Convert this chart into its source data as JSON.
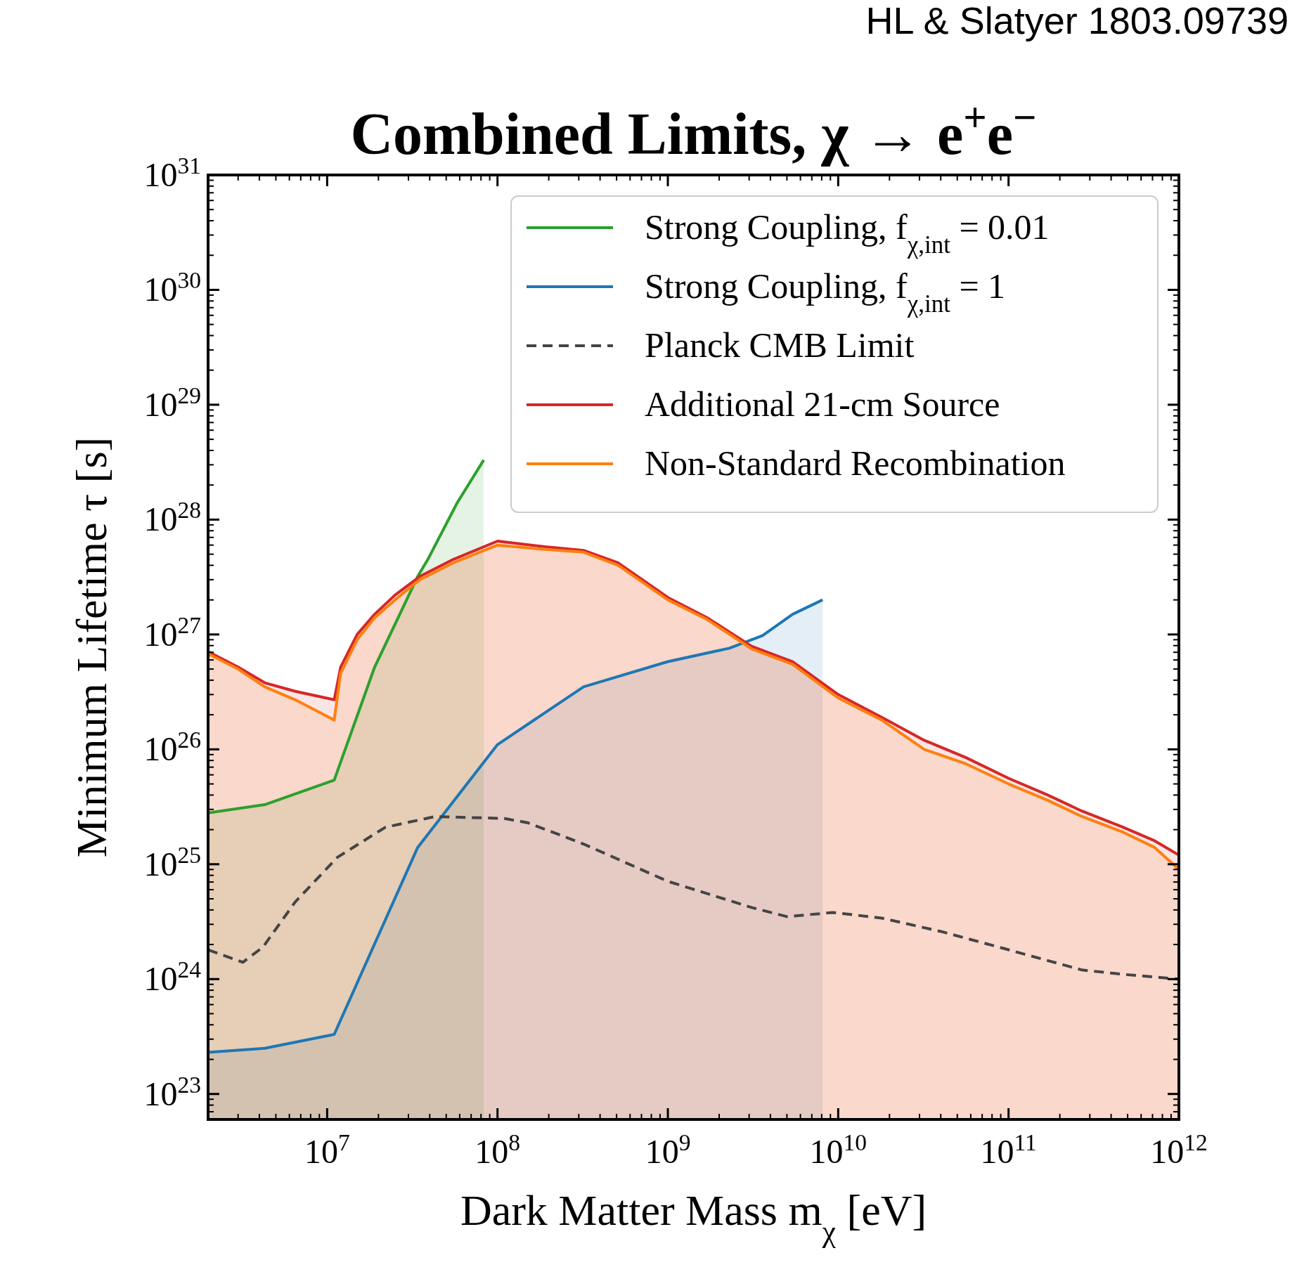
{
  "chart_data": {
    "type": "line",
    "title": "Combined Limits, χ → e$^{+}$e$^{−}$",
    "xlabel": "Dark Matter Mass m$_{χ}$ [eV]",
    "ylabel": "Minimum Lifetime τ [s]",
    "annotations": [
      "HL & Slatyer 1803.09739"
    ],
    "log": "xy",
    "legend": "top right",
    "xlim": [
      2000000.0,
      1000000000000.0
    ],
    "ylim": [
      6e+22,
      1e+31
    ],
    "xticks": [
      {
        "value": 10000000.0,
        "label": "10$^{7}$"
      },
      {
        "value": 100000000.0,
        "label": "10$^{8}$"
      },
      {
        "value": 1000000000.0,
        "label": "10$^{9}$"
      },
      {
        "value": 10000000000.0,
        "label": "10$^{10}$"
      },
      {
        "value": 100000000000.0,
        "label": "10$^{11}$"
      },
      {
        "value": 1000000000000.0,
        "label": "10$^{12}$"
      }
    ],
    "yticks": [
      {
        "value": 1e+23,
        "label": "10$^{23}$"
      },
      {
        "value": 1e+24,
        "label": "10$^{24}$"
      },
      {
        "value": 1e+25,
        "label": "10$^{25}$"
      },
      {
        "value": 1e+26,
        "label": "10$^{26}$"
      },
      {
        "value": 1e+27,
        "label": "10$^{27}$"
      },
      {
        "value": 1e+28,
        "label": "10$^{28}$"
      },
      {
        "value": 1e+29,
        "label": "10$^{29}$"
      },
      {
        "value": 1e+30,
        "label": "10$^{30}$"
      },
      {
        "value": 1e+31,
        "label": "10$^{31}$"
      }
    ],
    "series": [
      {
        "name": "Strong Coupling, f$_{χ,int}$ = 0.01",
        "type": "area",
        "color": "#2ca02c",
        "x": [
          2000000.0,
          4300000.0,
          11000000.0,
          19000000.0,
          34000000.0,
          39000000.0,
          58000000.0,
          83000000.0
        ],
        "values": [
          2.8e+25,
          3.3e+25,
          5.4e+25,
          5.2e+26,
          3.2e+27,
          4.5e+27,
          1.4e+28,
          3.3e+28
        ]
      },
      {
        "name": "Strong Coupling, f$_{χ,int}$ = 1",
        "type": "area",
        "color": "#1f77b4",
        "x": [
          2000000.0,
          4300000.0,
          11000000.0,
          34000000.0,
          100000000.0,
          320000000.0,
          1000000000.0,
          2300000000.0,
          3600000000.0,
          5400000000.0,
          8100000000.0
        ],
        "values": [
          2.3e+23,
          2.5e+23,
          3.3e+23,
          1.4e+25,
          1.1e+26,
          3.5e+26,
          5.8e+26,
          7.6e+26,
          9.8e+26,
          1.5e+27,
          2e+27
        ]
      },
      {
        "name": "Planck CMB Limit",
        "line_style": "dashed",
        "color": "#444444",
        "x": [
          2000000.0,
          3200000.0,
          4200000.0,
          6500000.0,
          11500000.0,
          22000000.0,
          43000000.0,
          110000000.0,
          150000000.0,
          320000000.0,
          1000000000.0,
          3100000000.0,
          5000000000.0,
          9300000000.0,
          18000000000.0,
          40000000000.0,
          100000000000.0,
          270000000000.0,
          470000000000.0,
          1000000000000.0
        ],
        "values": [
          1.8e+24,
          1.4e+24,
          1.9e+24,
          4.7e+24,
          1.15e+25,
          2.1e+25,
          2.6e+25,
          2.5e+25,
          2.3e+25,
          1.5e+25,
          7.1e+24,
          4.2e+24,
          3.5e+24,
          3.8e+24,
          3.4e+24,
          2.6e+24,
          1.8e+24,
          1.2e+24,
          1.1e+24,
          1e+24
        ]
      },
      {
        "name": "Additional 21-cm Source",
        "type": "area",
        "color": "#d62728",
        "x": [
          2000000.0,
          3000000.0,
          4300000.0,
          6500000.0,
          11000000.0,
          12000000.0,
          15000000.0,
          19000000.0,
          25000000.0,
          35000000.0,
          55000000.0,
          100000000.0,
          190000000.0,
          320000000.0,
          510000000.0,
          1000000000.0,
          1700000000.0,
          3100000000.0,
          5400000000.0,
          10000000000.0,
          18000000000.0,
          32000000000.0,
          56000000000.0,
          100000000000.0,
          170000000000.0,
          270000000000.0,
          470000000000.0,
          720000000000.0,
          1000000000000.0
        ],
        "values": [
          7.1e+26,
          5.2e+26,
          3.8e+26,
          3.2e+26,
          2.7e+26,
          5.2e+26,
          1e+27,
          1.5e+27,
          2.2e+27,
          3.2e+27,
          4.5e+27,
          6.5e+27,
          5.8e+27,
          5.4e+27,
          4.2e+27,
          2.1e+27,
          1.4e+27,
          7.9e+26,
          5.8e+26,
          3e+26,
          1.9e+26,
          1.2e+26,
          8.5e+25,
          5.6e+25,
          4e+25,
          2.9e+25,
          2.1e+25,
          1.6e+25,
          1.2e+25
        ]
      },
      {
        "name": "Non-Standard Recombination",
        "type": "area",
        "color": "#ff7f0e",
        "x": [
          2000000.0,
          3000000.0,
          4300000.0,
          6500000.0,
          11000000.0,
          12000000.0,
          15000000.0,
          19000000.0,
          25000000.0,
          35000000.0,
          55000000.0,
          100000000.0,
          190000000.0,
          320000000.0,
          510000000.0,
          1000000000.0,
          1700000000.0,
          3100000000.0,
          5400000000.0,
          10000000000.0,
          18000000000.0,
          32000000000.0,
          56000000000.0,
          100000000000.0,
          170000000000.0,
          270000000000.0,
          470000000000.0,
          720000000000.0,
          1000000000000.0
        ],
        "values": [
          6.8e+26,
          5e+26,
          3.5e+26,
          2.7e+26,
          1.8e+26,
          4.6e+26,
          9e+26,
          1.4e+27,
          2e+27,
          3e+27,
          4.2e+27,
          6e+27,
          5.5e+27,
          5.2e+27,
          4e+27,
          2e+27,
          1.35e+27,
          7.5e+26,
          5.5e+26,
          2.8e+26,
          1.8e+26,
          1e+26,
          7.5e+25,
          5e+25,
          3.6e+25,
          2.6e+25,
          1.9e+25,
          1.4e+25,
          9e+24
        ]
      }
    ]
  }
}
